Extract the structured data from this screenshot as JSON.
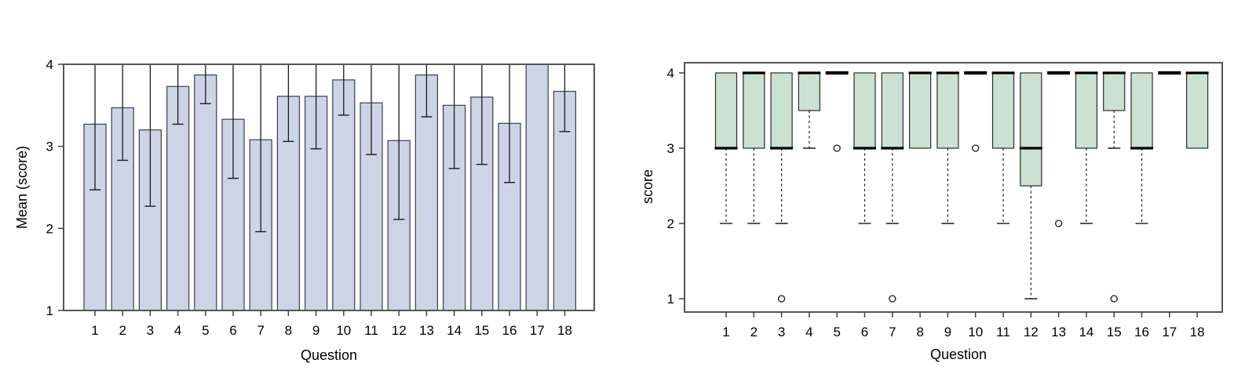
{
  "page": {
    "background": "#ffffff"
  },
  "chart_data": [
    {
      "type": "bar",
      "title": "",
      "xlabel": "Question",
      "ylabel": "Mean (score)",
      "categories": [
        "1",
        "2",
        "3",
        "4",
        "5",
        "6",
        "7",
        "8",
        "9",
        "10",
        "11",
        "12",
        "13",
        "14",
        "15",
        "16",
        "17",
        "18"
      ],
      "values": [
        3.27,
        3.47,
        3.2,
        3.73,
        3.87,
        3.33,
        3.08,
        3.61,
        3.61,
        3.81,
        3.53,
        3.07,
        3.87,
        3.5,
        3.6,
        3.28,
        4.0,
        3.67
      ],
      "error_low": [
        2.47,
        2.83,
        2.27,
        3.27,
        3.52,
        2.61,
        1.96,
        3.06,
        2.97,
        3.38,
        2.9,
        2.11,
        3.36,
        2.73,
        2.78,
        2.56,
        null,
        3.18
      ],
      "error_high_clipped_at": 4,
      "ylim": [
        1,
        4
      ],
      "yticks": [
        "1",
        "2",
        "3",
        "4"
      ],
      "grid": false,
      "legend": "none",
      "colors": {
        "bar_fill": "#ccd4e6",
        "bar_border": "#3b3f4a",
        "error_bar": "#1a1a1a",
        "frame": "#555555",
        "text": "#000000"
      }
    },
    {
      "type": "boxplot",
      "title": "",
      "xlabel": "Question",
      "ylabel": "score",
      "categories": [
        "1",
        "2",
        "3",
        "4",
        "5",
        "6",
        "7",
        "8",
        "9",
        "10",
        "11",
        "12",
        "13",
        "14",
        "15",
        "16",
        "17",
        "18"
      ],
      "ylim": [
        1,
        4
      ],
      "yticks": [
        "1",
        "2",
        "3",
        "4"
      ],
      "grid": false,
      "legend": "none",
      "boxes": [
        {
          "q1": 3.0,
          "median": 3.0,
          "q3": 4.0,
          "whisker_low": 2.0,
          "whisker_high": 4.0,
          "outliers": []
        },
        {
          "q1": 3.0,
          "median": 4.0,
          "q3": 4.0,
          "whisker_low": 2.0,
          "whisker_high": 4.0,
          "outliers": []
        },
        {
          "q1": 3.0,
          "median": 3.0,
          "q3": 4.0,
          "whisker_low": 2.0,
          "whisker_high": 4.0,
          "outliers": [
            1.0
          ]
        },
        {
          "q1": 3.5,
          "median": 4.0,
          "q3": 4.0,
          "whisker_low": 3.0,
          "whisker_high": 4.0,
          "outliers": []
        },
        {
          "q1": 4.0,
          "median": 4.0,
          "q3": 4.0,
          "whisker_low": 4.0,
          "whisker_high": 4.0,
          "outliers": [
            3.0
          ]
        },
        {
          "q1": 3.0,
          "median": 3.0,
          "q3": 4.0,
          "whisker_low": 2.0,
          "whisker_high": 4.0,
          "outliers": []
        },
        {
          "q1": 3.0,
          "median": 3.0,
          "q3": 4.0,
          "whisker_low": 2.0,
          "whisker_high": 4.0,
          "outliers": [
            1.0
          ]
        },
        {
          "q1": 3.0,
          "median": 4.0,
          "q3": 4.0,
          "whisker_low": 3.0,
          "whisker_high": 4.0,
          "outliers": []
        },
        {
          "q1": 3.0,
          "median": 4.0,
          "q3": 4.0,
          "whisker_low": 2.0,
          "whisker_high": 4.0,
          "outliers": []
        },
        {
          "q1": 4.0,
          "median": 4.0,
          "q3": 4.0,
          "whisker_low": 4.0,
          "whisker_high": 4.0,
          "outliers": [
            3.0
          ]
        },
        {
          "q1": 3.0,
          "median": 4.0,
          "q3": 4.0,
          "whisker_low": 2.0,
          "whisker_high": 4.0,
          "outliers": []
        },
        {
          "q1": 2.5,
          "median": 3.0,
          "q3": 4.0,
          "whisker_low": 1.0,
          "whisker_high": 4.0,
          "outliers": []
        },
        {
          "q1": 4.0,
          "median": 4.0,
          "q3": 4.0,
          "whisker_low": 4.0,
          "whisker_high": 4.0,
          "outliers": [
            2.0
          ]
        },
        {
          "q1": 3.0,
          "median": 4.0,
          "q3": 4.0,
          "whisker_low": 2.0,
          "whisker_high": 4.0,
          "outliers": []
        },
        {
          "q1": 3.5,
          "median": 4.0,
          "q3": 4.0,
          "whisker_low": 3.0,
          "whisker_high": 4.0,
          "outliers": [
            1.0
          ]
        },
        {
          "q1": 3.0,
          "median": 3.0,
          "q3": 4.0,
          "whisker_low": 2.0,
          "whisker_high": 4.0,
          "outliers": []
        },
        {
          "q1": 4.0,
          "median": 4.0,
          "q3": 4.0,
          "whisker_low": 4.0,
          "whisker_high": 4.0,
          "outliers": []
        },
        {
          "q1": 3.0,
          "median": 4.0,
          "q3": 4.0,
          "whisker_low": 3.0,
          "whisker_high": 4.0,
          "outliers": []
        }
      ],
      "colors": {
        "box_fill": "#cbe2d2",
        "box_border": "#2b2b2b",
        "median": "#000000",
        "whisker": "#1a1a1a",
        "outlier": "#1a1a1a",
        "frame": "#555555",
        "text": "#000000"
      }
    }
  ]
}
